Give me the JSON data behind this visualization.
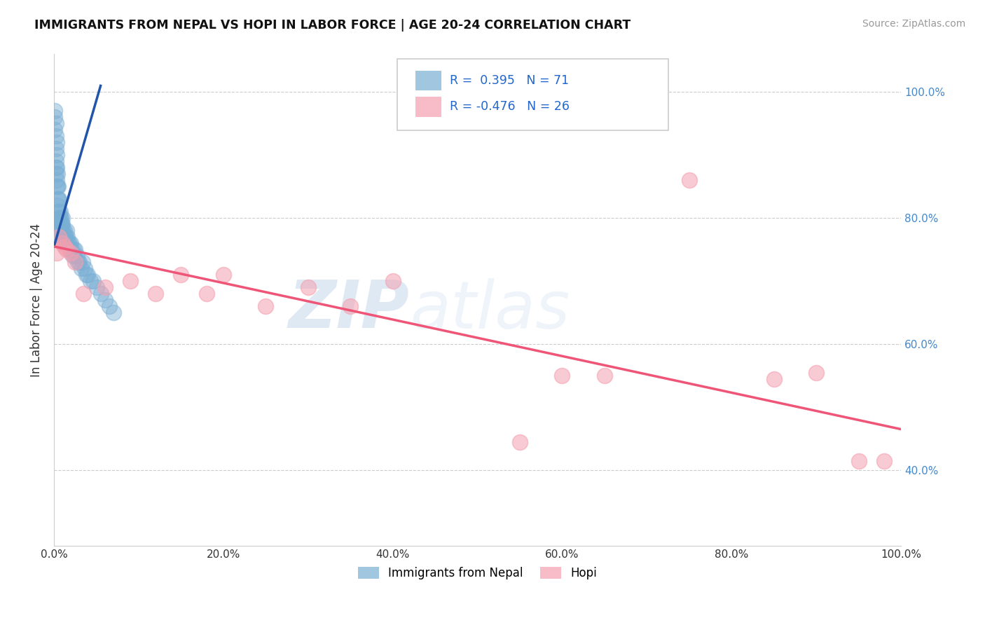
{
  "title": "IMMIGRANTS FROM NEPAL VS HOPI IN LABOR FORCE | AGE 20-24 CORRELATION CHART",
  "source": "Source: ZipAtlas.com",
  "ylabel": "In Labor Force | Age 20-24",
  "xlim": [
    0.0,
    1.0
  ],
  "ylim": [
    0.28,
    1.06
  ],
  "xticks": [
    0.0,
    0.2,
    0.4,
    0.6,
    0.8,
    1.0
  ],
  "yticks": [
    0.4,
    0.6,
    0.8,
    1.0
  ],
  "xticklabels": [
    "0.0%",
    "20.0%",
    "40.0%",
    "60.0%",
    "80.0%",
    "100.0%"
  ],
  "yticklabels": [
    "40.0%",
    "60.0%",
    "80.0%",
    "100.0%"
  ],
  "nepal_color": "#7aafd4",
  "hopi_color": "#f4a0b0",
  "nepal_line_color": "#2255aa",
  "hopi_line_color": "#ee5577",
  "nepal_R": 0.395,
  "nepal_N": 71,
  "hopi_R": -0.476,
  "hopi_N": 26,
  "legend_label_nepal": "Immigrants from Nepal",
  "legend_label_hopi": "Hopi",
  "watermark_zip": "ZIP",
  "watermark_atlas": "atlas",
  "background_color": "#ffffff",
  "grid_color": "#cccccc",
  "nepal_x": [
    0.001,
    0.001,
    0.001,
    0.002,
    0.002,
    0.002,
    0.002,
    0.002,
    0.002,
    0.003,
    0.003,
    0.003,
    0.003,
    0.003,
    0.004,
    0.004,
    0.004,
    0.004,
    0.005,
    0.005,
    0.005,
    0.005,
    0.005,
    0.006,
    0.006,
    0.006,
    0.007,
    0.007,
    0.007,
    0.008,
    0.008,
    0.008,
    0.009,
    0.009,
    0.01,
    0.01,
    0.01,
    0.011,
    0.011,
    0.012,
    0.012,
    0.013,
    0.014,
    0.014,
    0.015,
    0.015,
    0.016,
    0.017,
    0.018,
    0.019,
    0.02,
    0.021,
    0.022,
    0.023,
    0.024,
    0.025,
    0.027,
    0.028,
    0.03,
    0.032,
    0.034,
    0.036,
    0.038,
    0.04,
    0.043,
    0.046,
    0.05,
    0.055,
    0.06,
    0.065,
    0.07
  ],
  "nepal_y": [
    0.97,
    0.96,
    0.94,
    0.95,
    0.93,
    0.91,
    0.89,
    0.88,
    0.87,
    0.92,
    0.9,
    0.88,
    0.86,
    0.85,
    0.87,
    0.85,
    0.83,
    0.82,
    0.85,
    0.83,
    0.81,
    0.8,
    0.79,
    0.83,
    0.81,
    0.8,
    0.81,
    0.8,
    0.78,
    0.8,
    0.79,
    0.77,
    0.79,
    0.78,
    0.8,
    0.79,
    0.77,
    0.78,
    0.77,
    0.78,
    0.76,
    0.77,
    0.77,
    0.76,
    0.78,
    0.76,
    0.77,
    0.76,
    0.76,
    0.75,
    0.76,
    0.75,
    0.74,
    0.75,
    0.74,
    0.75,
    0.74,
    0.73,
    0.73,
    0.72,
    0.73,
    0.72,
    0.71,
    0.71,
    0.7,
    0.7,
    0.69,
    0.68,
    0.67,
    0.66,
    0.65
  ],
  "hopi_x": [
    0.003,
    0.006,
    0.01,
    0.012,
    0.015,
    0.02,
    0.025,
    0.035,
    0.06,
    0.09,
    0.12,
    0.15,
    0.18,
    0.2,
    0.25,
    0.3,
    0.35,
    0.4,
    0.55,
    0.6,
    0.65,
    0.75,
    0.85,
    0.9,
    0.95,
    0.98
  ],
  "hopi_y": [
    0.745,
    0.77,
    0.76,
    0.755,
    0.75,
    0.745,
    0.73,
    0.68,
    0.69,
    0.7,
    0.68,
    0.71,
    0.68,
    0.71,
    0.66,
    0.69,
    0.66,
    0.7,
    0.445,
    0.55,
    0.55,
    0.86,
    0.545,
    0.555,
    0.415,
    0.415
  ],
  "hopi_line_y0": 0.755,
  "hopi_line_y1": 0.465,
  "nepal_line_x0": 0.0,
  "nepal_line_x1": 0.055,
  "nepal_line_y0": 0.755,
  "nepal_line_y1": 1.01
}
